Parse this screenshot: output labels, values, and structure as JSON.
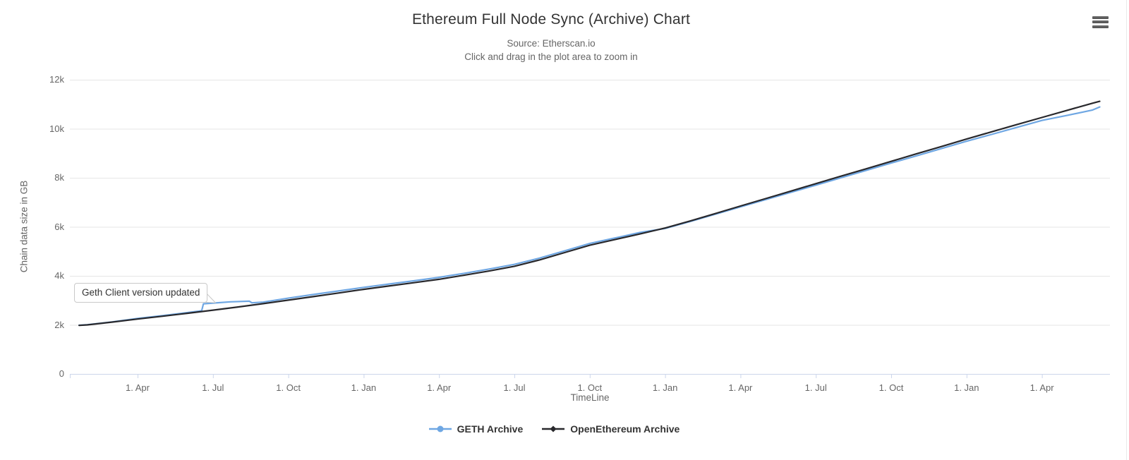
{
  "colors": {
    "background": "#ffffff",
    "title": "#333333",
    "subtitle": "#666666",
    "axis_label": "#666666",
    "grid_line": "#e6e6e6",
    "axis_line": "#ccd6eb",
    "legend_text": "#333333",
    "annotation_border": "#c9c9c9",
    "annotation_text": "#333333",
    "menu_icon": "#545454"
  },
  "chart_data": {
    "type": "line",
    "title": "Ethereum Full Node Sync (Archive) Chart",
    "subtitle_line1": "Source: Etherscan.io",
    "subtitle_line2": "Click and drag in the plot area to zoom in",
    "unit": "GB",
    "grid": "horizontal-only",
    "legend_position": "bottom-center",
    "x_axis": {
      "title": "TimeLine",
      "tick_labels": [
        "1. Apr",
        "1. Jul",
        "1. Oct",
        "1. Jan",
        "1. Apr",
        "1. Jul",
        "1. Oct",
        "1. Jan",
        "1. Apr",
        "1. Jul",
        "1. Oct",
        "1. Jan",
        "1. Apr"
      ],
      "tick_months": [
        3,
        6,
        9,
        12,
        15,
        18,
        21,
        24,
        27,
        30,
        33,
        36,
        39
      ]
    },
    "y_axis": {
      "title": "Chain data size in GB",
      "tick_labels": [
        "0",
        "2k",
        "4k",
        "6k",
        "8k",
        "10k",
        "12k"
      ],
      "tick_values": [
        0,
        2000,
        4000,
        6000,
        8000,
        10000,
        12000
      ],
      "max": 12000
    },
    "annotation": {
      "text": "Geth Client version updated",
      "anchor_month": 6.1,
      "anchor_value": 2905
    },
    "series": [
      {
        "name": "GETH Archive",
        "color": "#6fa7e3",
        "marker": "circle",
        "points": [
          [
            0.67,
            1985
          ],
          [
            1,
            2008
          ],
          [
            2,
            2125
          ],
          [
            3,
            2262
          ],
          [
            4,
            2380
          ],
          [
            5,
            2505
          ],
          [
            5.55,
            2575
          ],
          [
            5.62,
            2860
          ],
          [
            6,
            2890
          ],
          [
            6.7,
            2940
          ],
          [
            7.45,
            2968
          ],
          [
            7.55,
            2900
          ],
          [
            8,
            2930
          ],
          [
            9,
            3090
          ],
          [
            10,
            3240
          ],
          [
            11,
            3385
          ],
          [
            12,
            3530
          ],
          [
            13,
            3665
          ],
          [
            14,
            3800
          ],
          [
            15,
            3940
          ],
          [
            16,
            4105
          ],
          [
            17,
            4280
          ],
          [
            18,
            4470
          ],
          [
            19,
            4725
          ],
          [
            20,
            5020
          ],
          [
            21,
            5320
          ],
          [
            22,
            5545
          ],
          [
            22.25,
            5600
          ],
          [
            23,
            5770
          ],
          [
            24,
            5935
          ],
          [
            25,
            6220
          ],
          [
            26,
            6515
          ],
          [
            27,
            6815
          ],
          [
            28,
            7110
          ],
          [
            29,
            7405
          ],
          [
            30,
            7700
          ],
          [
            31,
            8000
          ],
          [
            32,
            8300
          ],
          [
            33,
            8600
          ],
          [
            34,
            8895
          ],
          [
            35,
            9190
          ],
          [
            36,
            9490
          ],
          [
            37,
            9770
          ],
          [
            38,
            10055
          ],
          [
            39,
            10340
          ],
          [
            40,
            10545
          ],
          [
            41,
            10760
          ],
          [
            41.3,
            10890
          ]
        ]
      },
      {
        "name": "OpenEthereum Archive",
        "color": "#28282c",
        "marker": "diamond",
        "points": [
          [
            0.67,
            1980
          ],
          [
            1,
            2000
          ],
          [
            2,
            2115
          ],
          [
            3,
            2240
          ],
          [
            4,
            2355
          ],
          [
            5,
            2475
          ],
          [
            6,
            2600
          ],
          [
            7,
            2730
          ],
          [
            8,
            2865
          ],
          [
            9,
            3010
          ],
          [
            10,
            3155
          ],
          [
            11,
            3300
          ],
          [
            12,
            3450
          ],
          [
            13,
            3585
          ],
          [
            14,
            3720
          ],
          [
            15,
            3860
          ],
          [
            16,
            4025
          ],
          [
            17,
            4200
          ],
          [
            18,
            4390
          ],
          [
            19,
            4650
          ],
          [
            20,
            4950
          ],
          [
            21,
            5250
          ],
          [
            22,
            5480
          ],
          [
            23,
            5710
          ],
          [
            24,
            5950
          ],
          [
            25,
            6240
          ],
          [
            26,
            6540
          ],
          [
            27,
            6850
          ],
          [
            28,
            7150
          ],
          [
            29,
            7455
          ],
          [
            30,
            7760
          ],
          [
            31,
            8065
          ],
          [
            32,
            8365
          ],
          [
            33,
            8670
          ],
          [
            34,
            8975
          ],
          [
            35,
            9275
          ],
          [
            36,
            9580
          ],
          [
            37,
            9875
          ],
          [
            38,
            10170
          ],
          [
            39,
            10460
          ],
          [
            40,
            10750
          ],
          [
            41,
            11040
          ],
          [
            41.3,
            11120
          ]
        ]
      }
    ]
  }
}
